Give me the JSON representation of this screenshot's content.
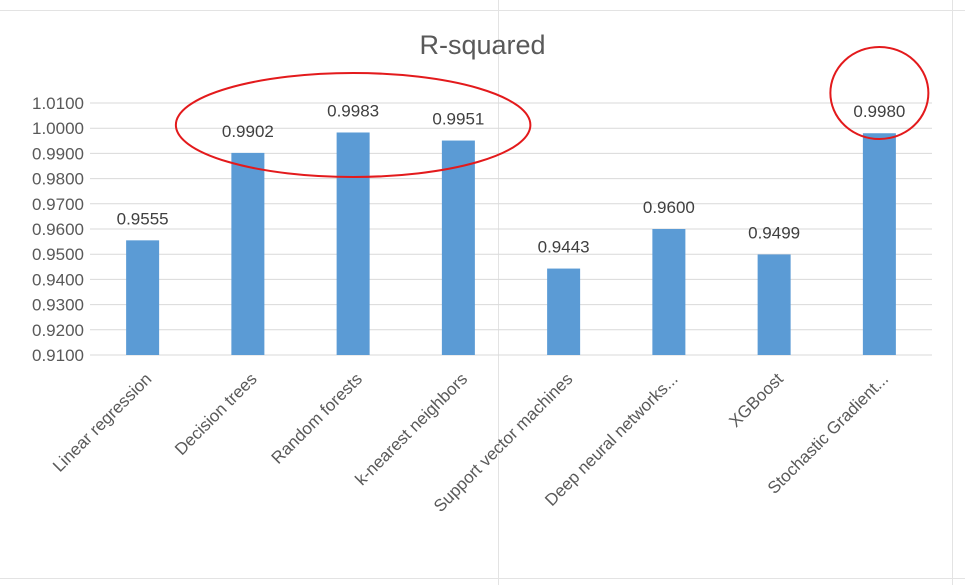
{
  "chart_data": {
    "type": "bar",
    "title": "R-squared",
    "categories": [
      "Linear regression",
      "Decision trees",
      "Random forests",
      "k-nearest neighbors",
      "Support vector machines",
      "Deep neural networks...",
      "XGBoost",
      "Stochastic Gradient..."
    ],
    "values": [
      0.9555,
      0.9902,
      0.9983,
      0.9951,
      0.9443,
      0.96,
      0.9499,
      0.998
    ],
    "data_labels": [
      "0.9555",
      "0.9902",
      "0.9983",
      "0.9951",
      "0.9443",
      "0.9600",
      "0.9499",
      "0.9980"
    ],
    "ylim": [
      0.91,
      1.01
    ],
    "y_ticks": [
      "0.9100",
      "0.9200",
      "0.9300",
      "0.9400",
      "0.9500",
      "0.9600",
      "0.9700",
      "0.9800",
      "0.9900",
      "1.0000",
      "1.0100"
    ],
    "grid": true,
    "legend": "none",
    "colors": {
      "bar": "#5b9bd5",
      "grid": "#d9d9d9",
      "axis_text": "#595959",
      "highlight": "#e31a1c"
    },
    "highlights": [
      {
        "categories": [
          "Decision trees",
          "Random forests",
          "k-nearest neighbors"
        ]
      },
      {
        "categories": [
          "Stochastic Gradient..."
        ]
      }
    ]
  }
}
